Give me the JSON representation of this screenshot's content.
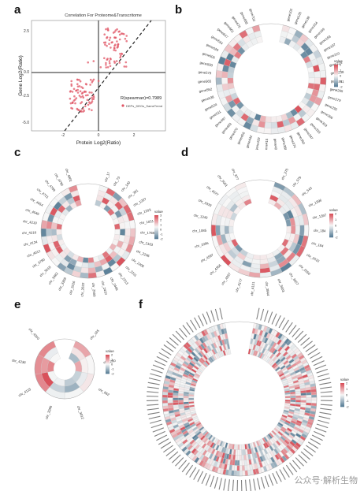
{
  "panels": {
    "a": {
      "letter": "a",
      "title": "Correlation For Proteome&Transcritome",
      "xlabel": "Protein Log2(Ratio)",
      "ylabel": "Gene Log2(Ratio)",
      "stat": "R(spearman)=0.7989",
      "legend": "DEPs_DEGs_SameTrend",
      "xticks": [
        "-2",
        "0",
        "2"
      ],
      "yticks": [
        "2.5",
        "0.0",
        "-2.5",
        "-5.0"
      ]
    },
    "b": {
      "letter": "b",
      "legend_title": "value",
      "legend_ticks": [
        "2",
        "1",
        "0",
        "-1",
        "-2"
      ],
      "labels": [
        "gene102",
        "gene126",
        "gene138",
        "gene154",
        "gene169",
        "gene183",
        "gene197",
        "gene210",
        "gene224",
        "gene238",
        "gene251",
        "gene265",
        "gene279",
        "gene292",
        "gene306",
        "gene319",
        "gene333",
        "gene347",
        "gene360",
        "gene374",
        "gene388",
        "gene401",
        "gene415",
        "gene429",
        "gene442",
        "gene456",
        "gene470",
        "gene483",
        "gene497",
        "gene511",
        "gene524",
        "gene538",
        "gene552",
        "gene565",
        "gene579",
        "gene593",
        "gene606",
        "gene620",
        "gene634",
        "gene647",
        "gene661",
        "gene675",
        "gene688",
        "gene702"
      ]
    },
    "c": {
      "letter": "c",
      "legend_title": "value",
      "legend_ticks": [
        "3",
        "2",
        "1",
        "0",
        "-1",
        "-2"
      ],
      "labels": [
        "chr_17",
        "chr_73",
        "chr_140",
        "chr_391",
        "chr_1207",
        "chr_1203",
        "chr_1051",
        "chr_1788",
        "chr_2163",
        "chr_2206",
        "chr_2208",
        "chr_2211",
        "chr_2213",
        "chr_2406",
        "chr_2410",
        "chr_2509",
        "chr_2622",
        "chr_3316",
        "chr_3358",
        "chr_3482",
        "chr_3618",
        "chr_3780",
        "chr_4012",
        "chr_4124",
        "chr_4218",
        "chr_4219",
        "chr_4546",
        "chr_4654",
        "chr_4721",
        "chr_4789",
        "chr_4790",
        "chr_4801"
      ]
    },
    "d": {
      "letter": "d",
      "legend_title": "value",
      "legend_ticks": [
        "2",
        "1",
        "0",
        "-1",
        "-2"
      ],
      "labels": [
        "chr_375",
        "chr_579",
        "chr_543",
        "chr_1396",
        "chr_1397",
        "chr_184",
        "chr_184",
        "chr_2010",
        "chr_2050",
        "chr_3007",
        "chr_3603",
        "chr_3844",
        "chr_4121",
        "chr_4177",
        "chr_4267",
        "chr_4356",
        "chr_4597",
        "chr_1096",
        "chr_1085",
        "chr_1340",
        "chr_3333",
        "chr_4077",
        "chr_5051",
        "chr_877"
      ]
    },
    "e": {
      "letter": "e",
      "legend_title": "value",
      "legend_ticks": [
        "2",
        "1",
        "0",
        "-1",
        "-2"
      ],
      "labels": [
        "chr_165",
        "chr_290",
        "chr_662",
        "chr_3012",
        "chr_3280",
        "chr_4115",
        "chr_4238",
        "chr_4350"
      ]
    },
    "f": {
      "letter": "f",
      "legend_title": "value",
      "legend_ticks": [
        "2",
        "1",
        "0",
        "-1",
        "-2"
      ]
    }
  },
  "watermark": "公众号·解析生物",
  "colors": {
    "high": "#d9505a",
    "mid": "#f7f7f7",
    "low": "#5a7f97",
    "points": "#e05565"
  }
}
